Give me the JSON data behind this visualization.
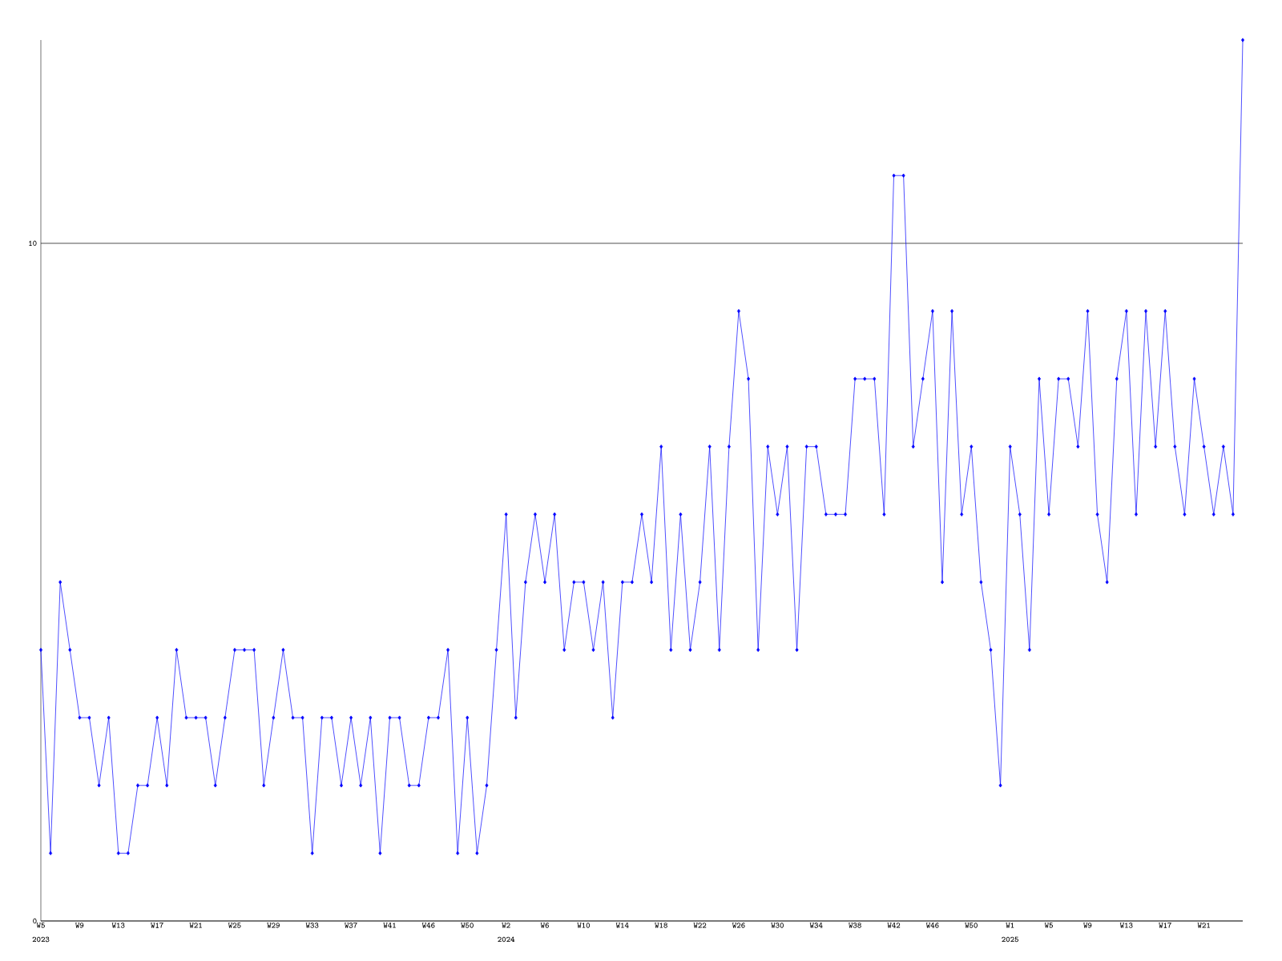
{
  "chart_data": {
    "type": "line",
    "categories": [
      "W5",
      null,
      null,
      null,
      "W9",
      null,
      null,
      null,
      "W13",
      null,
      null,
      null,
      "W17",
      null,
      null,
      null,
      "W21",
      null,
      null,
      null,
      "W25",
      null,
      null,
      null,
      "W29",
      null,
      null,
      null,
      "W33",
      null,
      null,
      null,
      "W37",
      null,
      null,
      null,
      "W41",
      null,
      null,
      null,
      "W46",
      null,
      null,
      null,
      "W50",
      null,
      null,
      null,
      "W2",
      null,
      null,
      null,
      "W6",
      null,
      null,
      null,
      "W10",
      null,
      null,
      null,
      "W14",
      null,
      null,
      null,
      "W18",
      null,
      null,
      null,
      "W22",
      null,
      null,
      null,
      "W26",
      null,
      null,
      null,
      "W30",
      null,
      null,
      null,
      "W34",
      null,
      null,
      null,
      "W38",
      null,
      null,
      null,
      "W42",
      null,
      null,
      null,
      "W46",
      null,
      null,
      null,
      "W50",
      null,
      null,
      null,
      "W1",
      null,
      null,
      null,
      "W5",
      null,
      null,
      null,
      "W9",
      null,
      null,
      null,
      "W13",
      null,
      null,
      null,
      "W17",
      null,
      null,
      null,
      "W21",
      null,
      null,
      null,
      null
    ],
    "series": [
      {
        "color": "#0000ff",
        "values": [
          4,
          1,
          5,
          4,
          3,
          3,
          2,
          3,
          1,
          1,
          2,
          2,
          3,
          2,
          4,
          3,
          3,
          3,
          2,
          3,
          4,
          4,
          4,
          2,
          3,
          4,
          3,
          3,
          1,
          3,
          3,
          2,
          3,
          2,
          3,
          1,
          3,
          3,
          2,
          2,
          3,
          3,
          4,
          1,
          3,
          1,
          2,
          4,
          6,
          3,
          5,
          6,
          5,
          6,
          4,
          5,
          5,
          4,
          5,
          3,
          5,
          5,
          6,
          5,
          7,
          4,
          6,
          4,
          5,
          7,
          4,
          7,
          9,
          8,
          4,
          7,
          6,
          7,
          4,
          7,
          7,
          6,
          6,
          6,
          8,
          8,
          8,
          6,
          11,
          11,
          7,
          8,
          9,
          5,
          9,
          6,
          7,
          5,
          4,
          2,
          7,
          6,
          4,
          8,
          6,
          8,
          8,
          7,
          9,
          6,
          5,
          8,
          9,
          6,
          9,
          7,
          9,
          7,
          6,
          8,
          7,
          6,
          7,
          6,
          13
        ]
      }
    ],
    "annotations": [
      "2023",
      "2024",
      "2025"
    ],
    "ylim": [
      0,
      13
    ],
    "yticks": [
      0,
      10
    ],
    "grid": "y",
    "marker": "diamond",
    "line_style": "solid"
  }
}
